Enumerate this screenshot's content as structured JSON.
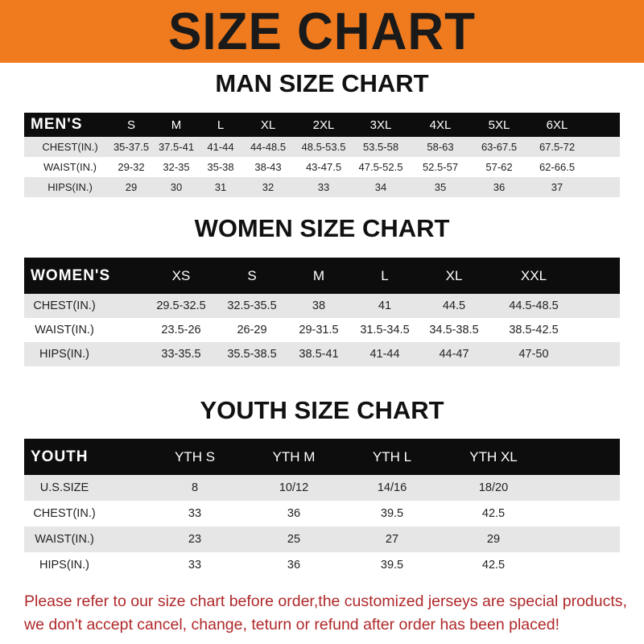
{
  "title": "SIZE CHART",
  "colors": {
    "banner": "#f07b1f",
    "header_row": "#0d0d0d",
    "stripe": "#e6e6e6",
    "notice": "#b0282a"
  },
  "men": {
    "heading": "MAN SIZE CHART",
    "columns": [
      "MEN'S",
      "S",
      "M",
      "L",
      "XL",
      "2XL",
      "3XL",
      "4XL",
      "5XL",
      "6XL"
    ],
    "rows": [
      [
        "CHEST(IN.)",
        "35-37.5",
        "37.5-41",
        "41-44",
        "44-48.5",
        "48.5-53.5",
        "53.5-58",
        "58-63",
        "63-67.5",
        "67.5-72"
      ],
      [
        "WAIST(IN.)",
        "29-32",
        "32-35",
        "35-38",
        "38-43",
        "43-47.5",
        "47.5-52.5",
        "52.5-57",
        "57-62",
        "62-66.5"
      ],
      [
        "HIPS(IN.)",
        "29",
        "30",
        "31",
        "32",
        "33",
        "34",
        "35",
        "36",
        "37"
      ]
    ]
  },
  "women": {
    "heading": "WOMEN SIZE CHART",
    "columns": [
      "WOMEN'S",
      "XS",
      "S",
      "M",
      "L",
      "XL",
      "XXL"
    ],
    "rows": [
      [
        "CHEST(IN.)",
        "29.5-32.5",
        "32.5-35.5",
        "38",
        "41",
        "44.5",
        "44.5-48.5"
      ],
      [
        "WAIST(IN.)",
        "23.5-26",
        "26-29",
        "29-31.5",
        "31.5-34.5",
        "34.5-38.5",
        "38.5-42.5"
      ],
      [
        "HIPS(IN.)",
        "33-35.5",
        "35.5-38.5",
        "38.5-41",
        "41-44",
        "44-47",
        "47-50"
      ]
    ]
  },
  "youth": {
    "heading": "YOUTH SIZE CHART",
    "columns": [
      "YOUTH",
      "YTH S",
      "YTH M",
      "YTH L",
      "YTH XL"
    ],
    "rows": [
      [
        "U.S.SIZE",
        "8",
        "10/12",
        "14/16",
        "18/20"
      ],
      [
        "CHEST(IN.)",
        "33",
        "36",
        "39.5",
        "42.5"
      ],
      [
        "WAIST(IN.)",
        "23",
        "25",
        "27",
        "29"
      ],
      [
        "HIPS(IN.)",
        "33",
        "36",
        "39.5",
        "42.5"
      ]
    ]
  },
  "notice": {
    "line1": "Please refer to our size chart before order,the customized jerseys are special products,",
    "line2": "we don't accept cancel, change, teturn or refund after order has been placed!"
  }
}
